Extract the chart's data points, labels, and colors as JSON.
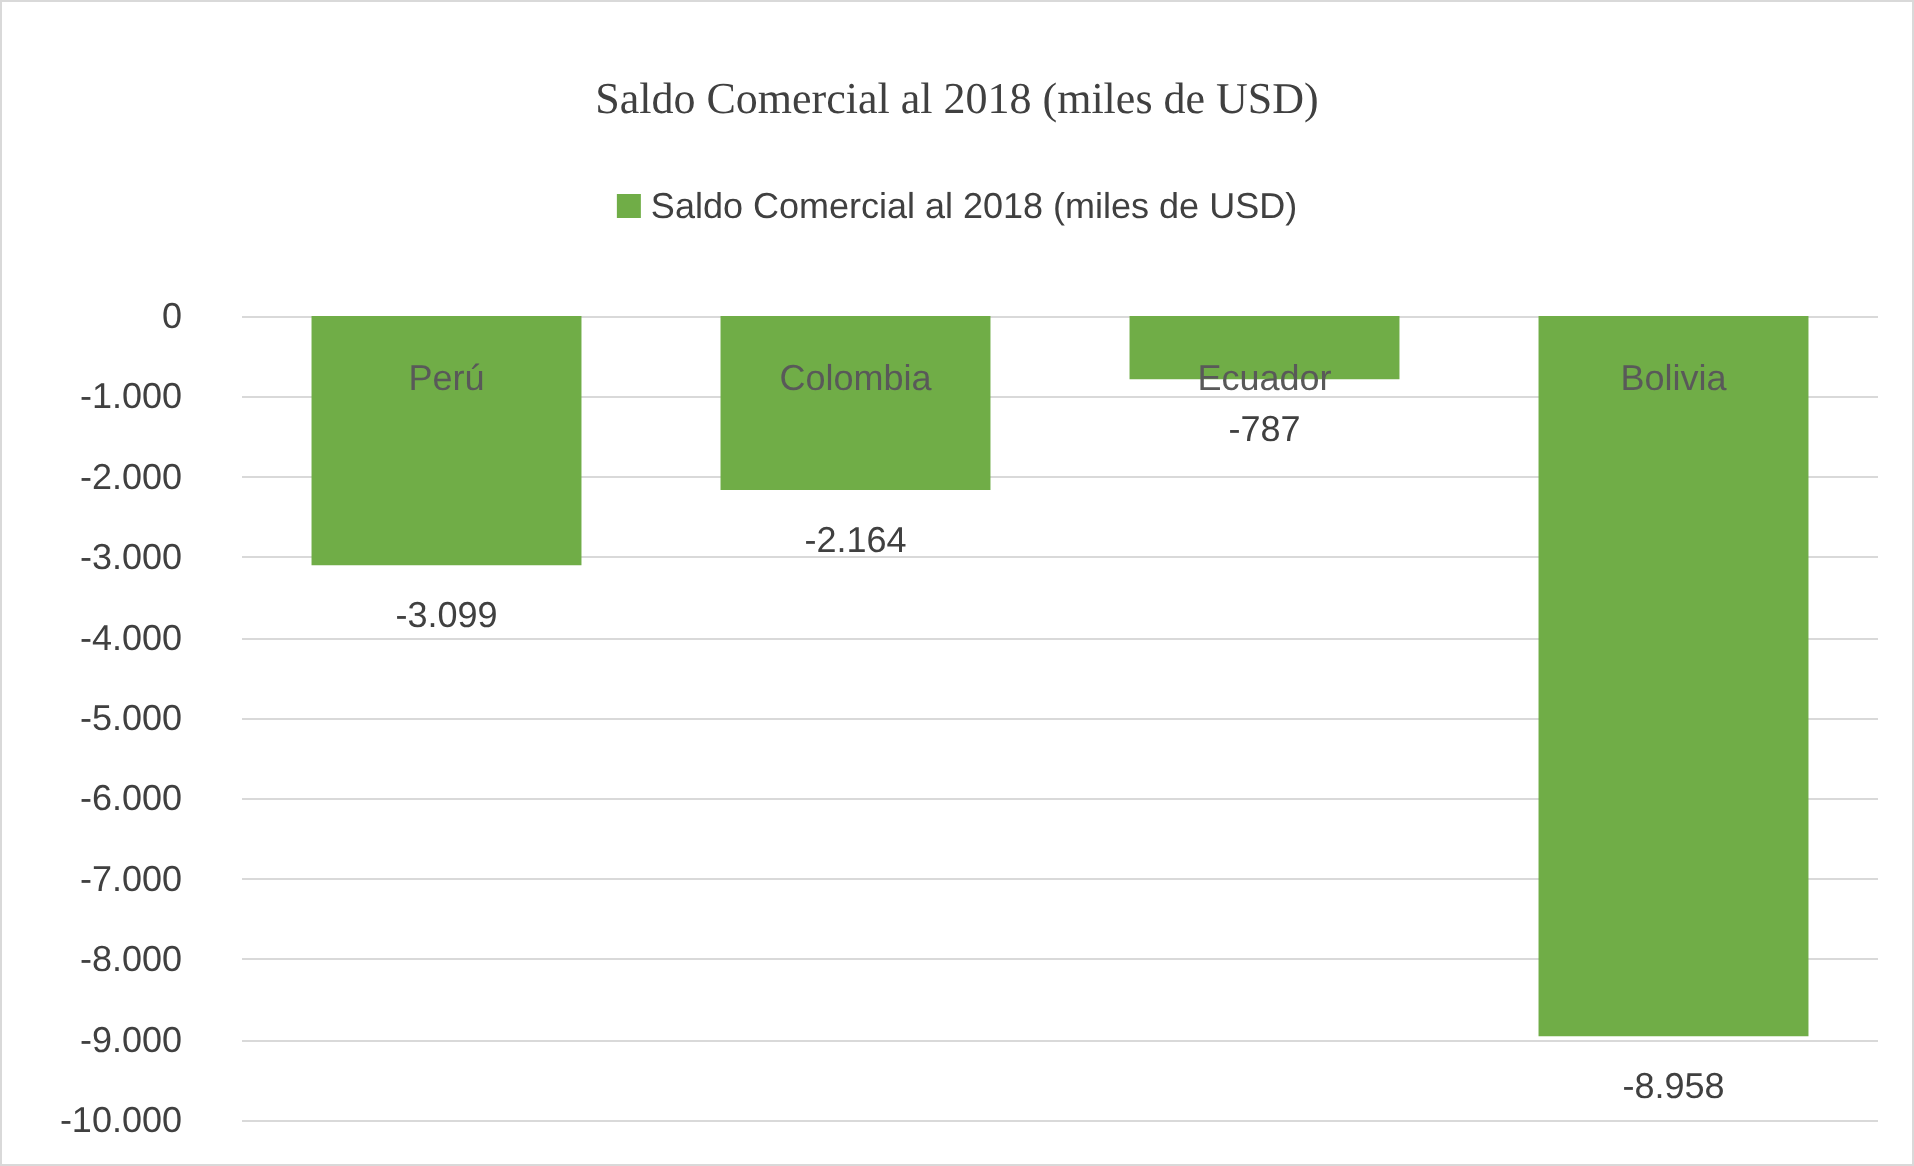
{
  "chart_data": {
    "type": "bar",
    "title": "Saldo Comercial al 2018 (miles de USD)",
    "categories": [
      "Perú",
      "Colombia",
      "Ecuador",
      "Bolivia"
    ],
    "series": [
      {
        "name": "Saldo Comercial al 2018 (miles de USD)",
        "color": "#70ad47",
        "values": [
          -3099,
          -2164,
          -787,
          -8958
        ],
        "value_labels": [
          "-3.099",
          "-2.164",
          "-787",
          "-8.958"
        ]
      }
    ],
    "ylim": [
      -10000,
      0
    ],
    "yticks": [
      {
        "value": 0,
        "label": "0"
      },
      {
        "value": -1000,
        "label": "-1.000"
      },
      {
        "value": -2000,
        "label": "-2.000"
      },
      {
        "value": -3000,
        "label": "-3.000"
      },
      {
        "value": -4000,
        "label": "-4.000"
      },
      {
        "value": -5000,
        "label": "-5.000"
      },
      {
        "value": -6000,
        "label": "-6.000"
      },
      {
        "value": -7000,
        "label": "-7.000"
      },
      {
        "value": -8000,
        "label": "-8.000"
      },
      {
        "value": -9000,
        "label": "-9.000"
      },
      {
        "value": -10000,
        "label": "-10.000"
      }
    ],
    "grid": "y",
    "legend": "top"
  }
}
